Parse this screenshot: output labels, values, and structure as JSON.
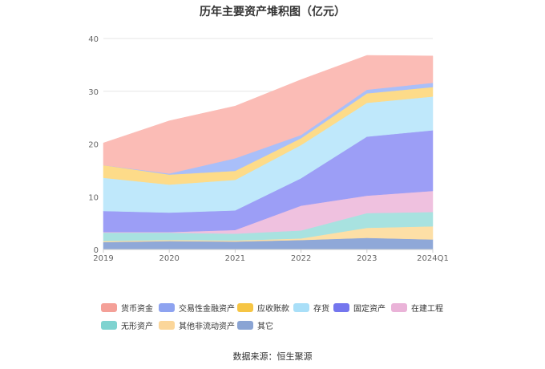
{
  "chart_data": {
    "type": "area",
    "stacked": true,
    "title": "历年主要资产堆积图（亿元）",
    "categories": [
      "2019",
      "2020",
      "2021",
      "2022",
      "2023",
      "2024Q1"
    ],
    "y_ticks": [
      0,
      10,
      20,
      30,
      40
    ],
    "ylim": [
      0,
      40
    ],
    "grid": true,
    "legend_position": "bottom",
    "series": [
      {
        "name": "其它",
        "color": "#8fa8d8",
        "values": [
          1.4,
          1.6,
          1.5,
          1.8,
          2.2,
          1.9
        ]
      },
      {
        "name": "其他非流动资产",
        "color": "#fddfa6",
        "values": [
          0.2,
          0.2,
          0.2,
          0.3,
          1.9,
          2.5
        ]
      },
      {
        "name": "无形资产",
        "color": "#a8e2e0",
        "values": [
          1.6,
          1.4,
          1.3,
          1.5,
          2.8,
          2.7
        ]
      },
      {
        "name": "在建工程",
        "color": "#efc1df",
        "values": [
          0.1,
          0.1,
          0.7,
          4.7,
          3.3,
          4.0
        ]
      },
      {
        "name": "固定资产",
        "color": "#9c9ef6",
        "values": [
          4.0,
          3.7,
          3.7,
          5.2,
          11.2,
          11.5
        ]
      },
      {
        "name": "存货",
        "color": "#bfe8fb",
        "values": [
          6.3,
          5.3,
          5.8,
          6.3,
          6.4,
          6.4
        ]
      },
      {
        "name": "应收账款",
        "color": "#fddb89",
        "values": [
          2.4,
          1.9,
          1.7,
          1.3,
          1.8,
          1.8
        ]
      },
      {
        "name": "交易性金融资产",
        "color": "#a9bff9",
        "values": [
          0,
          0.2,
          2.4,
          0.6,
          0.7,
          0.8
        ]
      },
      {
        "name": "货币资金",
        "color": "#fbbcb6",
        "values": [
          4.2,
          10.0,
          9.9,
          10.5,
          6.5,
          5.1
        ]
      }
    ]
  },
  "legend": [
    {
      "label": "货币资金",
      "color": "#f4a098"
    },
    {
      "label": "交易性金融资产",
      "color": "#8ea3f0"
    },
    {
      "label": "应收账款",
      "color": "#f6c544"
    },
    {
      "label": "存货",
      "color": "#a9dff8"
    },
    {
      "label": "固定资产",
      "color": "#7476ee"
    },
    {
      "label": "在建工程",
      "color": "#eab3d8"
    },
    {
      "label": "无形资产",
      "color": "#7fd3d0"
    },
    {
      "label": "其他非流动资产",
      "color": "#fbd69a"
    },
    {
      "label": "其它",
      "color": "#8aa4d4"
    }
  ],
  "source": "数据来源：恒生聚源"
}
